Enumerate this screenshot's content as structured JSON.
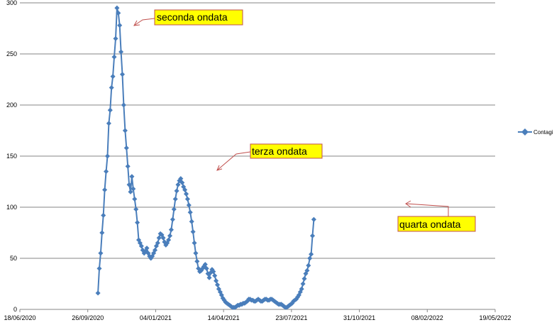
{
  "chart_data": {
    "type": "line",
    "title": "",
    "xlabel": "",
    "ylabel": "",
    "ylim": [
      0,
      300
    ],
    "xlim": [
      "2020-06-18",
      "2022-05-19"
    ],
    "y_ticks": [
      0,
      50,
      100,
      150,
      200,
      250,
      300
    ],
    "x_ticks": [
      "18/06/2020",
      "26/09/2020",
      "04/01/2021",
      "14/04/2021",
      "23/07/2021",
      "31/10/2021",
      "08/02/2022",
      "19/05/2022"
    ],
    "grid": "horizontal",
    "legend_position": "right",
    "series": [
      {
        "name": "Contagi",
        "color": "#4a7ebb",
        "marker": "diamond",
        "points": [
          [
            "2020-10-11",
            16
          ],
          [
            "2020-10-13",
            40
          ],
          [
            "2020-10-15",
            55
          ],
          [
            "2020-10-17",
            75
          ],
          [
            "2020-10-19",
            92
          ],
          [
            "2020-10-21",
            117
          ],
          [
            "2020-10-23",
            135
          ],
          [
            "2020-10-25",
            150
          ],
          [
            "2020-10-27",
            182
          ],
          [
            "2020-10-29",
            195
          ],
          [
            "2020-10-31",
            217
          ],
          [
            "2020-11-02",
            228
          ],
          [
            "2020-11-04",
            247
          ],
          [
            "2020-11-06",
            265
          ],
          [
            "2020-11-08",
            295
          ],
          [
            "2020-11-10",
            290
          ],
          [
            "2020-11-12",
            278
          ],
          [
            "2020-11-14",
            252
          ],
          [
            "2020-11-16",
            230
          ],
          [
            "2020-11-18",
            200
          ],
          [
            "2020-11-20",
            175
          ],
          [
            "2020-11-22",
            158
          ],
          [
            "2020-11-24",
            140
          ],
          [
            "2020-11-26",
            122
          ],
          [
            "2020-11-28",
            115
          ],
          [
            "2020-11-30",
            130
          ],
          [
            "2020-12-02",
            118
          ],
          [
            "2020-12-04",
            108
          ],
          [
            "2020-12-06",
            98
          ],
          [
            "2020-12-08",
            85
          ],
          [
            "2020-12-10",
            68
          ],
          [
            "2020-12-12",
            65
          ],
          [
            "2020-12-14",
            62
          ],
          [
            "2020-12-16",
            58
          ],
          [
            "2020-12-18",
            55
          ],
          [
            "2020-12-20",
            57
          ],
          [
            "2020-12-22",
            60
          ],
          [
            "2020-12-24",
            55
          ],
          [
            "2020-12-26",
            52
          ],
          [
            "2020-12-28",
            50
          ],
          [
            "2020-12-30",
            52
          ],
          [
            "2021-01-01",
            55
          ],
          [
            "2021-01-03",
            58
          ],
          [
            "2021-01-05",
            62
          ],
          [
            "2021-01-07",
            65
          ],
          [
            "2021-01-09",
            70
          ],
          [
            "2021-01-11",
            74
          ],
          [
            "2021-01-13",
            73
          ],
          [
            "2021-01-15",
            70
          ],
          [
            "2021-01-17",
            66
          ],
          [
            "2021-01-19",
            63
          ],
          [
            "2021-01-21",
            65
          ],
          [
            "2021-01-23",
            68
          ],
          [
            "2021-01-25",
            72
          ],
          [
            "2021-01-27",
            78
          ],
          [
            "2021-01-29",
            88
          ],
          [
            "2021-01-31",
            98
          ],
          [
            "2021-02-02",
            108
          ],
          [
            "2021-02-04",
            116
          ],
          [
            "2021-02-06",
            122
          ],
          [
            "2021-02-08",
            126
          ],
          [
            "2021-02-10",
            128
          ],
          [
            "2021-02-12",
            124
          ],
          [
            "2021-02-14",
            120
          ],
          [
            "2021-02-16",
            117
          ],
          [
            "2021-02-18",
            113
          ],
          [
            "2021-02-20",
            108
          ],
          [
            "2021-02-22",
            102
          ],
          [
            "2021-02-24",
            95
          ],
          [
            "2021-02-26",
            86
          ],
          [
            "2021-02-28",
            76
          ],
          [
            "2021-03-02",
            65
          ],
          [
            "2021-03-04",
            55
          ],
          [
            "2021-03-06",
            47
          ],
          [
            "2021-03-08",
            40
          ],
          [
            "2021-03-10",
            37
          ],
          [
            "2021-03-12",
            38
          ],
          [
            "2021-03-14",
            40
          ],
          [
            "2021-03-16",
            42
          ],
          [
            "2021-03-18",
            44
          ],
          [
            "2021-03-20",
            40
          ],
          [
            "2021-03-22",
            35
          ],
          [
            "2021-03-24",
            31
          ],
          [
            "2021-03-26",
            36
          ],
          [
            "2021-03-28",
            39
          ],
          [
            "2021-03-30",
            37
          ],
          [
            "2021-04-01",
            33
          ],
          [
            "2021-04-03",
            28
          ],
          [
            "2021-04-05",
            24
          ],
          [
            "2021-04-07",
            20
          ],
          [
            "2021-04-09",
            17
          ],
          [
            "2021-04-11",
            14
          ],
          [
            "2021-04-13",
            11
          ],
          [
            "2021-04-15",
            9
          ],
          [
            "2021-04-17",
            7
          ],
          [
            "2021-04-19",
            6
          ],
          [
            "2021-04-21",
            5
          ],
          [
            "2021-04-23",
            4
          ],
          [
            "2021-04-25",
            3
          ],
          [
            "2021-04-27",
            2
          ],
          [
            "2021-04-29",
            2
          ],
          [
            "2021-05-01",
            2
          ],
          [
            "2021-05-03",
            3
          ],
          [
            "2021-05-05",
            4
          ],
          [
            "2021-05-07",
            4
          ],
          [
            "2021-05-09",
            5
          ],
          [
            "2021-05-11",
            5
          ],
          [
            "2021-05-13",
            6
          ],
          [
            "2021-05-15",
            6
          ],
          [
            "2021-05-17",
            7
          ],
          [
            "2021-05-19",
            8
          ],
          [
            "2021-05-21",
            10
          ],
          [
            "2021-05-23",
            10
          ],
          [
            "2021-05-25",
            9
          ],
          [
            "2021-05-27",
            9
          ],
          [
            "2021-05-29",
            8
          ],
          [
            "2021-05-31",
            8
          ],
          [
            "2021-06-02",
            9
          ],
          [
            "2021-06-04",
            10
          ],
          [
            "2021-06-06",
            9
          ],
          [
            "2021-06-08",
            8
          ],
          [
            "2021-06-10",
            8
          ],
          [
            "2021-06-12",
            9
          ],
          [
            "2021-06-14",
            10
          ],
          [
            "2021-06-16",
            10
          ],
          [
            "2021-06-18",
            9
          ],
          [
            "2021-06-20",
            9
          ],
          [
            "2021-06-22",
            10
          ],
          [
            "2021-06-24",
            10
          ],
          [
            "2021-06-26",
            9
          ],
          [
            "2021-06-28",
            8
          ],
          [
            "2021-06-30",
            7
          ],
          [
            "2021-07-02",
            6
          ],
          [
            "2021-07-04",
            5
          ],
          [
            "2021-07-06",
            5
          ],
          [
            "2021-07-08",
            5
          ],
          [
            "2021-07-10",
            4
          ],
          [
            "2021-07-12",
            3
          ],
          [
            "2021-07-14",
            2
          ],
          [
            "2021-07-16",
            2
          ],
          [
            "2021-07-18",
            3
          ],
          [
            "2021-07-20",
            4
          ],
          [
            "2021-07-22",
            5
          ],
          [
            "2021-07-24",
            6
          ],
          [
            "2021-07-26",
            8
          ],
          [
            "2021-07-28",
            9
          ],
          [
            "2021-07-30",
            10
          ],
          [
            "2021-08-01",
            12
          ],
          [
            "2021-08-03",
            14
          ],
          [
            "2021-08-05",
            17
          ],
          [
            "2021-08-07",
            20
          ],
          [
            "2021-08-09",
            25
          ],
          [
            "2021-08-11",
            30
          ],
          [
            "2021-08-13",
            35
          ],
          [
            "2021-08-15",
            38
          ],
          [
            "2021-08-17",
            43
          ],
          [
            "2021-08-19",
            50
          ],
          [
            "2021-08-21",
            54
          ],
          [
            "2021-08-23",
            72
          ],
          [
            "2021-08-25",
            88
          ]
        ]
      }
    ]
  },
  "annotations": [
    {
      "text": "seconda ondata"
    },
    {
      "text": "terza ondata"
    },
    {
      "text": "quarta ondata"
    }
  ]
}
